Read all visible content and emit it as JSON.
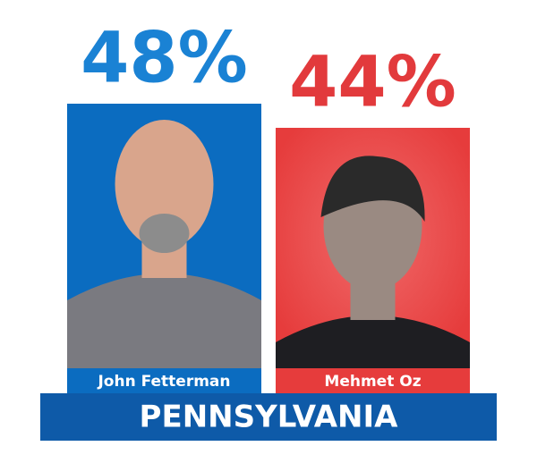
{
  "chart_data": {
    "type": "bar",
    "title": "PENNSYLVANIA",
    "categories": [
      "John Fetterman",
      "Mehmet Oz"
    ],
    "values": [
      48,
      44
    ],
    "value_labels": [
      "48%",
      "44%"
    ],
    "colors": [
      "#0b6cc0",
      "#e63c3c"
    ],
    "label_colors": [
      "#1a82d4",
      "#e23a3c"
    ],
    "banner_color": "#0e5aa8"
  }
}
